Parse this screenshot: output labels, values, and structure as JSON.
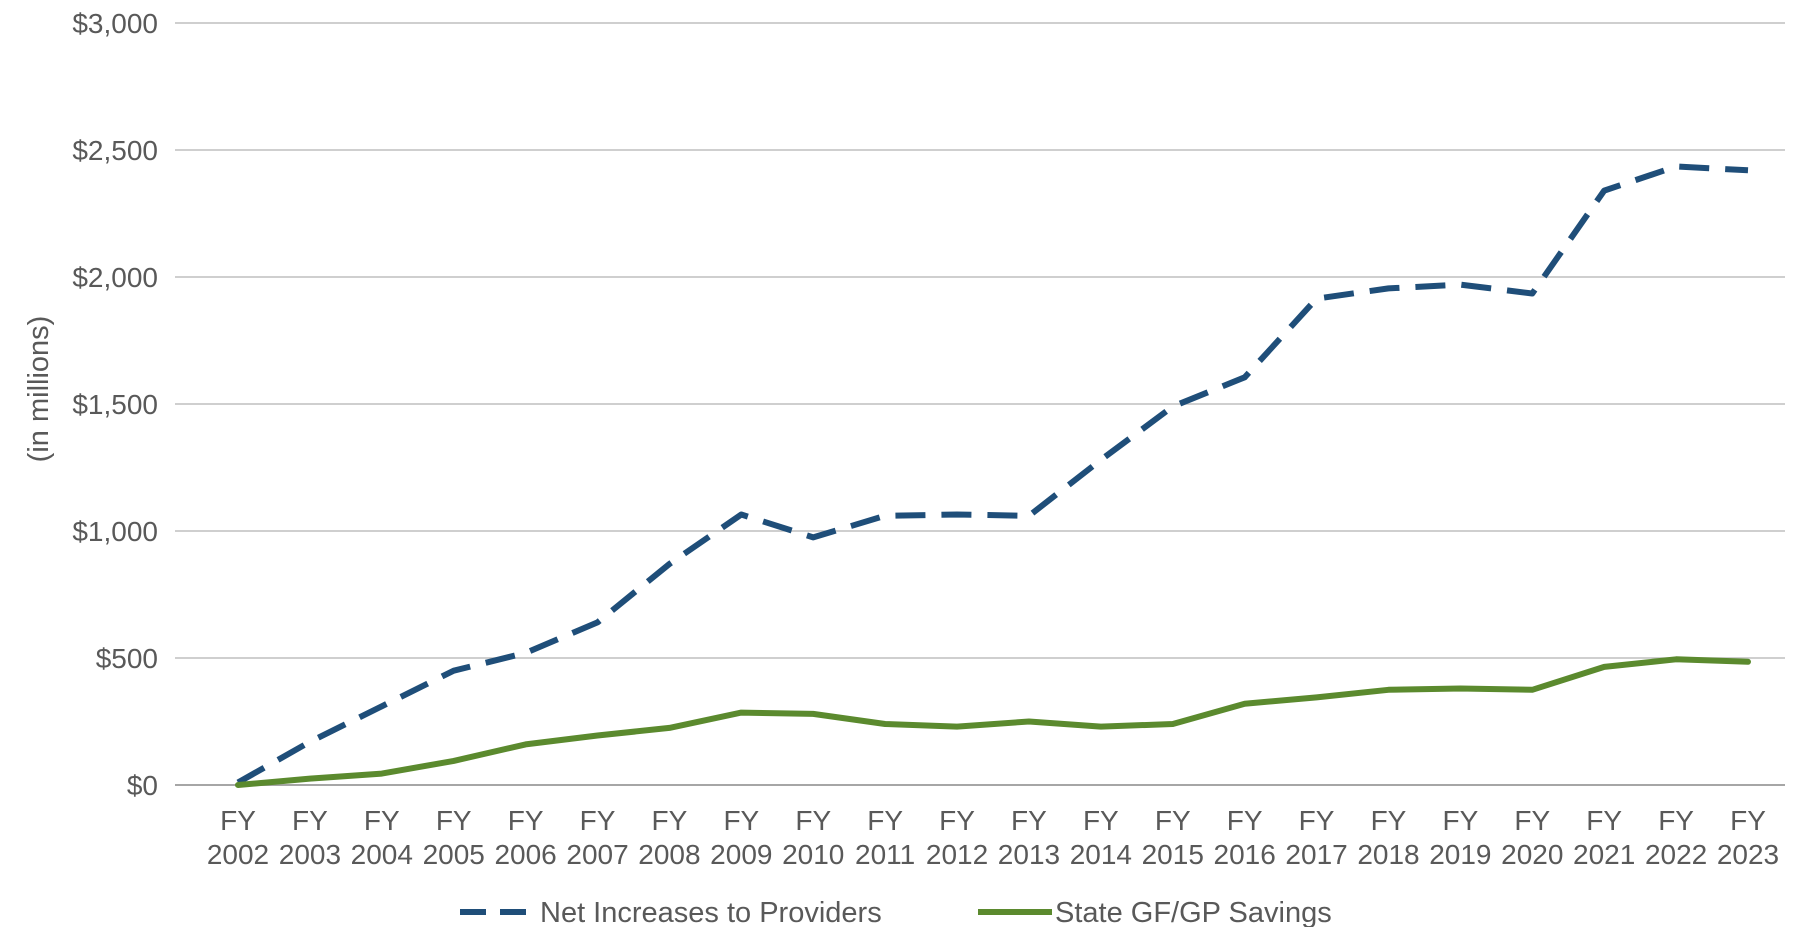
{
  "chart_data": {
    "type": "line",
    "title": "",
    "xlabel": "",
    "ylabel": "(in millions)",
    "ylim": [
      0,
      3000
    ],
    "yticks": [
      0,
      500,
      1000,
      1500,
      2000,
      2500,
      3000
    ],
    "ytick_labels": [
      "$0",
      "$500",
      "$1,000",
      "$1,500",
      "$2,000",
      "$2,500",
      "$3,000"
    ],
    "grid": true,
    "legend_position": "bottom",
    "categories": [
      {
        "line1": "FY",
        "line2": "2002"
      },
      {
        "line1": "FY",
        "line2": "2003"
      },
      {
        "line1": "FY",
        "line2": "2004"
      },
      {
        "line1": "FY",
        "line2": "2005"
      },
      {
        "line1": "FY",
        "line2": "2006"
      },
      {
        "line1": "FY",
        "line2": "2007"
      },
      {
        "line1": "FY",
        "line2": "2008"
      },
      {
        "line1": "FY",
        "line2": "2009"
      },
      {
        "line1": "FY",
        "line2": "2010"
      },
      {
        "line1": "FY",
        "line2": "2011"
      },
      {
        "line1": "FY",
        "line2": "2012"
      },
      {
        "line1": "FY",
        "line2": "2013"
      },
      {
        "line1": "FY",
        "line2": "2014"
      },
      {
        "line1": "FY",
        "line2": "2015"
      },
      {
        "line1": "FY",
        "line2": "2016"
      },
      {
        "line1": "FY",
        "line2": "2017"
      },
      {
        "line1": "FY",
        "line2": "2018"
      },
      {
        "line1": "FY",
        "line2": "2019"
      },
      {
        "line1": "FY",
        "line2": "2020"
      },
      {
        "line1": "FY",
        "line2": "2021"
      },
      {
        "line1": "FY",
        "line2": "2022"
      },
      {
        "line1": "FY",
        "line2": "2023"
      }
    ],
    "series": [
      {
        "name": "Net Increases to Providers",
        "color": "#1f4e79",
        "style": "dashed",
        "values": [
          10,
          170,
          310,
          450,
          520,
          640,
          870,
          1065,
          975,
          1060,
          1065,
          1060,
          1280,
          1490,
          1605,
          1915,
          1955,
          1970,
          1935,
          2340,
          2435,
          2420
        ]
      },
      {
        "name": "State GF/GP Savings",
        "color": "#5b8a2e",
        "style": "solid",
        "values": [
          0,
          25,
          45,
          95,
          160,
          195,
          225,
          285,
          280,
          240,
          230,
          250,
          230,
          240,
          320,
          345,
          375,
          380,
          375,
          465,
          495,
          485
        ]
      }
    ]
  }
}
